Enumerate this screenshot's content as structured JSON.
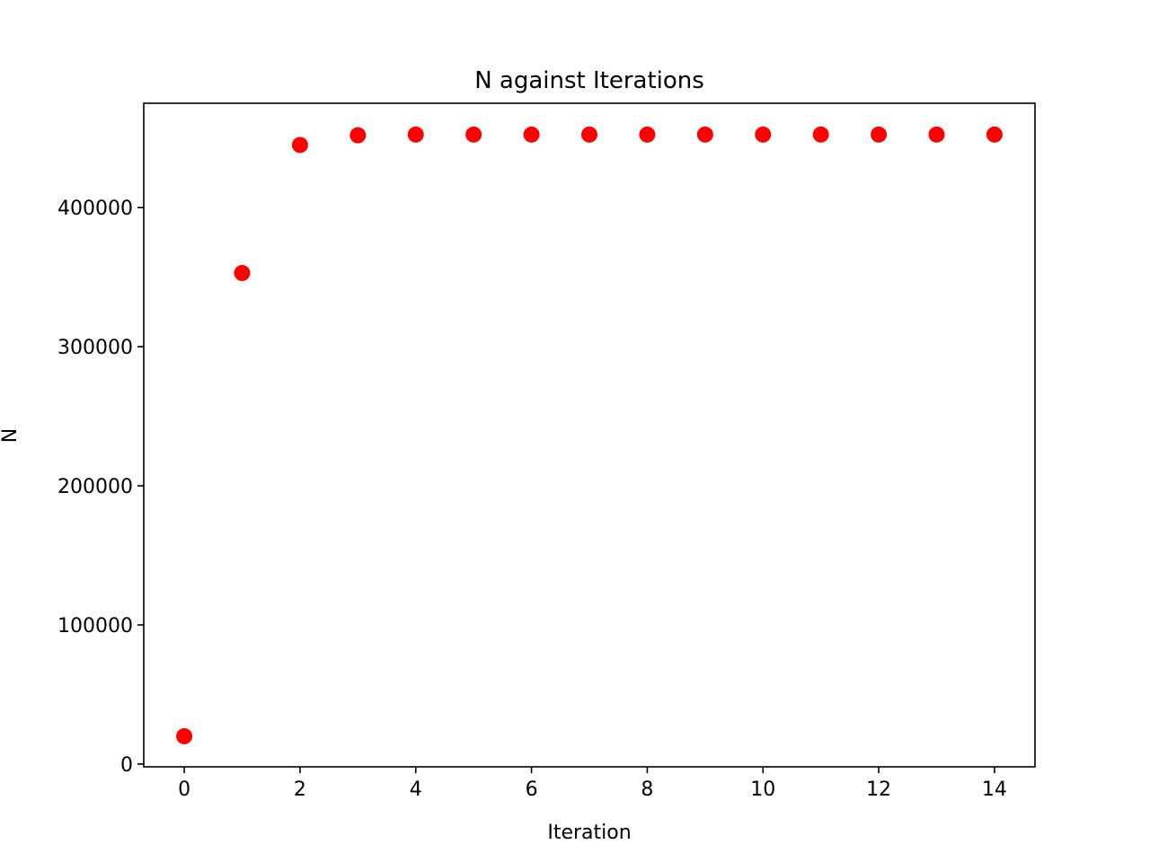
{
  "chart_data": {
    "type": "scatter",
    "title": "N against Iterations",
    "xlabel": "Iteration",
    "ylabel": "N",
    "xlim": [
      -0.7,
      14.7
    ],
    "ylim": [
      -2000,
      475000
    ],
    "xticks": [
      0,
      2,
      4,
      6,
      8,
      10,
      12,
      14
    ],
    "yticks": [
      0,
      100000,
      200000,
      300000,
      400000
    ],
    "grid": false,
    "marker_color": "#ff0000",
    "x": [
      0,
      1,
      2,
      3,
      4,
      5,
      6,
      7,
      8,
      9,
      10,
      11,
      12,
      13,
      14
    ],
    "y": [
      20000,
      353000,
      445000,
      452000,
      452500,
      452500,
      452500,
      452500,
      452500,
      452500,
      452500,
      452500,
      452500,
      452500,
      452500
    ]
  }
}
